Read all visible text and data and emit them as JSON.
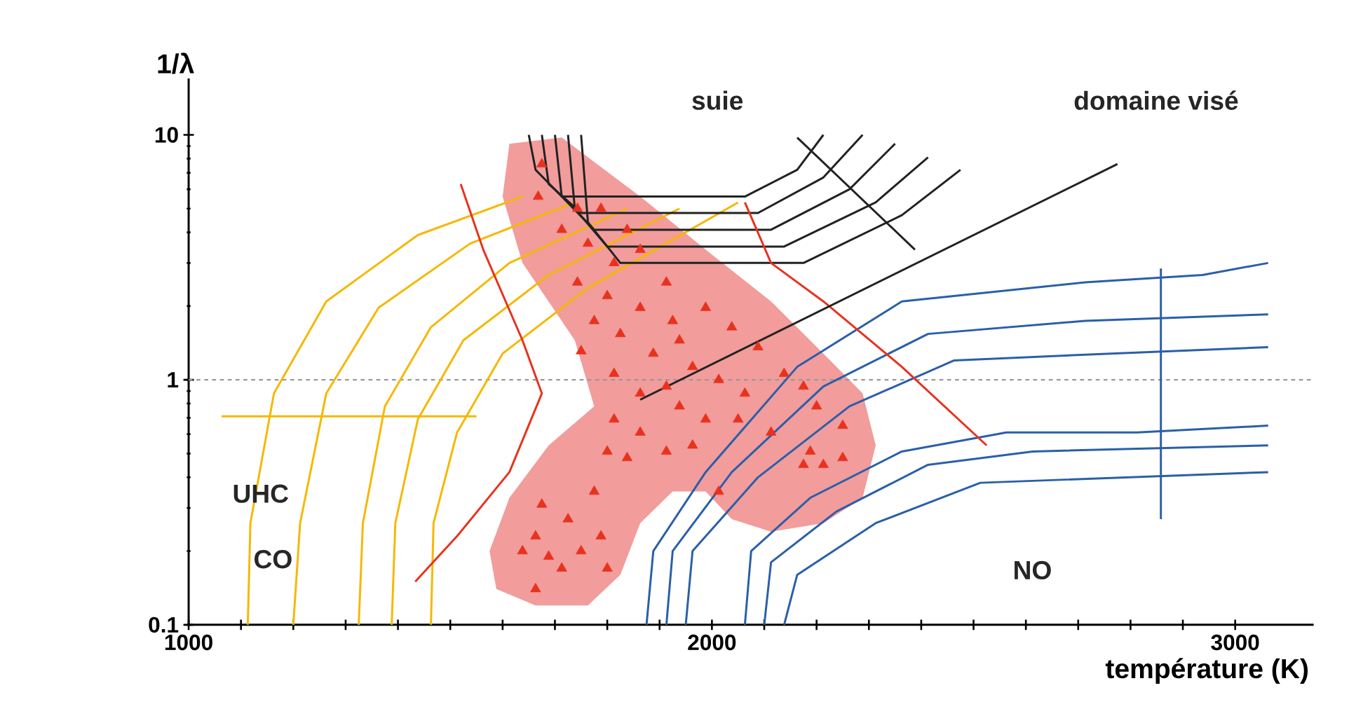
{
  "chart_data": {
    "type": "line",
    "xlabel": "température (K)",
    "ylabel": "1/λ",
    "log": "y",
    "xlim": [
      1000,
      3150
    ],
    "ylim": [
      0.1,
      17
    ],
    "xticks": [
      1000,
      {
        "value": 1100,
        "label": null
      },
      {
        "value": 1200,
        "label": null
      },
      {
        "value": 1300,
        "label": null
      },
      {
        "value": 1400,
        "label": null
      },
      {
        "value": 1500,
        "label": null
      },
      {
        "value": 1600,
        "label": null
      },
      {
        "value": 1700,
        "label": null
      },
      {
        "value": 1800,
        "label": null
      },
      {
        "value": 1900,
        "label": null
      },
      2000,
      {
        "value": 2100,
        "label": null
      },
      {
        "value": 2200,
        "label": null
      },
      {
        "value": 2300,
        "label": null
      },
      {
        "value": 2400,
        "label": null
      },
      {
        "value": 2500,
        "label": null
      },
      {
        "value": 2600,
        "label": null
      },
      {
        "value": 2700,
        "label": null
      },
      {
        "value": 2800,
        "label": null
      },
      {
        "value": 2900,
        "label": null
      },
      3000
    ],
    "yticks": [
      0.1,
      1,
      10
    ],
    "marker": "none",
    "ref_lines": [
      {
        "axis": "y",
        "value": 1,
        "color": "#999999",
        "line_style": "dashed"
      }
    ],
    "annotations": [
      "suie",
      "domaine visé",
      "UHC",
      "CO",
      "NO"
    ],
    "series": [
      {
        "type": "area",
        "color": "#f29c9c",
        "x": [
          1613,
          1713,
          1863,
          1988,
          2113,
          2213,
          2288,
          2313,
          2288,
          2213,
          2113,
          2038,
          1988,
          1925,
          1863,
          1825,
          1763,
          1663,
          1588,
          1575,
          1613,
          1688,
          1775,
          1738,
          1638,
          1600,
          1613
        ],
        "values": [
          9.2,
          9.75,
          5.6,
          3.4,
          2.09,
          1.28,
          0.88,
          0.54,
          0.33,
          0.26,
          0.24,
          0.27,
          0.35,
          0.35,
          0.26,
          0.16,
          0.12,
          0.12,
          0.14,
          0.2,
          0.33,
          0.54,
          0.78,
          1.45,
          3.0,
          5.6,
          9.2
        ]
      },
      {
        "color": "#f5b800",
        "x": [
          1113,
          1118,
          1163,
          1263,
          1438,
          1638
        ],
        "values": [
          0.1,
          0.26,
          0.88,
          2.09,
          3.9,
          5.6
        ]
      },
      {
        "color": "#f5b800",
        "x": [
          1200,
          1213,
          1263,
          1363,
          1538,
          1738
        ],
        "values": [
          0.1,
          0.26,
          0.88,
          1.97,
          3.6,
          5.3
        ]
      },
      {
        "color": "#f5b800",
        "x": [
          1325,
          1333,
          1375,
          1463,
          1613,
          1838
        ],
        "values": [
          0.1,
          0.26,
          0.78,
          1.64,
          3.0,
          5.0
        ]
      },
      {
        "color": "#f5b800",
        "x": [
          1388,
          1395,
          1438,
          1525,
          1688,
          1938
        ],
        "values": [
          0.1,
          0.26,
          0.69,
          1.45,
          2.68,
          5.0
        ]
      },
      {
        "color": "#f5b800",
        "x": [
          1463,
          1468,
          1513,
          1600,
          1763,
          2050
        ],
        "values": [
          0.1,
          0.26,
          0.61,
          1.28,
          2.37,
          5.3
        ]
      },
      {
        "color": "#222222",
        "x": [
          1650,
          1663,
          1713,
          2063,
          2163,
          2213
        ],
        "values": [
          10,
          7.2,
          5.6,
          5.6,
          7.2,
          10
        ]
      },
      {
        "color": "#222222",
        "x": [
          1675,
          1688,
          1750,
          2088,
          2213,
          2288
        ],
        "values": [
          10,
          6.3,
          4.8,
          4.8,
          6.7,
          10
        ]
      },
      {
        "color": "#222222",
        "x": [
          1700,
          1713,
          1775,
          2113,
          2263,
          2350
        ],
        "values": [
          10,
          5.6,
          4.1,
          4.1,
          6.0,
          9.2
        ]
      },
      {
        "color": "#222222",
        "x": [
          1725,
          1738,
          1800,
          2138,
          2313,
          2413
        ],
        "values": [
          10,
          5.0,
          3.5,
          3.5,
          5.3,
          8.1
        ]
      },
      {
        "color": "#222222",
        "x": [
          1750,
          1763,
          1825,
          2175,
          2363,
          2475
        ],
        "values": [
          10,
          4.4,
          3.0,
          3.0,
          4.7,
          7.2
        ]
      },
      {
        "color": "#2a5fa8",
        "x": [
          1875,
          1888,
          1988,
          2163,
          2363,
          2713,
          2938,
          3063
        ],
        "values": [
          0.1,
          0.2,
          0.42,
          1.13,
          2.09,
          2.5,
          2.68,
          3.0
        ]
      },
      {
        "color": "#2a5fa8",
        "x": [
          1913,
          1925,
          2038,
          2213,
          2413,
          2713,
          3063
        ],
        "values": [
          0.1,
          0.2,
          0.42,
          0.94,
          1.54,
          1.74,
          1.85
        ]
      },
      {
        "color": "#2a5fa8",
        "x": [
          1950,
          1963,
          2088,
          2263,
          2463,
          2763,
          3063
        ],
        "values": [
          0.1,
          0.2,
          0.4,
          0.78,
          1.2,
          1.28,
          1.36
        ]
      },
      {
        "color": "#2a5fa8",
        "x": [
          2063,
          2075,
          2188,
          2363,
          2563,
          2813,
          3063
        ],
        "values": [
          0.1,
          0.2,
          0.33,
          0.51,
          0.61,
          0.61,
          0.65
        ]
      },
      {
        "color": "#2a5fa8",
        "x": [
          2100,
          2113,
          2238,
          2413,
          2613,
          3063
        ],
        "values": [
          0.1,
          0.18,
          0.29,
          0.45,
          0.51,
          0.54
        ]
      },
      {
        "color": "#2a5fa8",
        "x": [
          2138,
          2163,
          2313,
          2513,
          3063
        ],
        "values": [
          0.1,
          0.16,
          0.26,
          0.38,
          0.42
        ]
      },
      {
        "color": "#e8321e",
        "x": [
          1520,
          1563,
          1638,
          1675,
          1613,
          1513,
          1433
        ],
        "values": [
          6.3,
          3.4,
          1.45,
          0.88,
          0.42,
          0.23,
          0.15
        ]
      },
      {
        "color": "#e8321e",
        "x": [
          2063,
          2113,
          2213,
          2363,
          2525
        ],
        "values": [
          5.3,
          3.0,
          2.09,
          1.13,
          0.54
        ]
      },
      {
        "color": "#f5b800",
        "x": [
          1550,
          1063
        ],
        "values": [
          0.71,
          0.71
        ]
      },
      {
        "color": "#2a5fa8",
        "x": [
          2858,
          2858
        ],
        "values": [
          2.85,
          0.27
        ]
      },
      {
        "color": "#222222",
        "x": [
          2388,
          2163
        ],
        "values": [
          3.4,
          9.75
        ]
      },
      {
        "color": "#222222",
        "x": [
          2775,
          1863
        ],
        "values": [
          7.6,
          0.83
        ]
      },
      {
        "type": "scatter",
        "color": "#e8321e",
        "marker": "triangle",
        "x": [
          1675,
          1668,
          1743,
          1788,
          1713,
          1838,
          1763,
          1813,
          1863,
          1743,
          1800,
          1913,
          1863,
          1775,
          1988,
          1825,
          1925,
          1938,
          1750,
          1888,
          2038,
          1963,
          1813,
          2088,
          2013,
          1863,
          1913,
          2063,
          2138,
          2175,
          1813,
          1938,
          1988,
          2050,
          2113,
          2250,
          2200,
          1863,
          1913,
          1838,
          1963,
          1800,
          1775,
          2013,
          2188,
          2213,
          2250,
          2175,
          1675,
          1725,
          1663,
          1750,
          1788,
          1638,
          1688,
          1713,
          1800,
          1663
        ],
        "values": [
          7.6,
          5.6,
          5.0,
          5.0,
          4.1,
          4.1,
          3.6,
          3.0,
          3.4,
          2.5,
          2.2,
          2.5,
          1.97,
          1.74,
          1.97,
          1.54,
          1.74,
          1.45,
          1.31,
          1.28,
          1.64,
          1.13,
          1.06,
          1.36,
          1.0,
          0.88,
          0.94,
          0.88,
          1.06,
          0.94,
          0.69,
          0.78,
          0.69,
          0.69,
          0.61,
          0.65,
          0.78,
          0.61,
          0.51,
          0.48,
          0.54,
          0.51,
          0.35,
          0.35,
          0.51,
          0.45,
          0.48,
          0.45,
          0.31,
          0.27,
          0.23,
          0.2,
          0.23,
          0.2,
          0.19,
          0.17,
          0.17,
          0.14
        ]
      }
    ]
  }
}
